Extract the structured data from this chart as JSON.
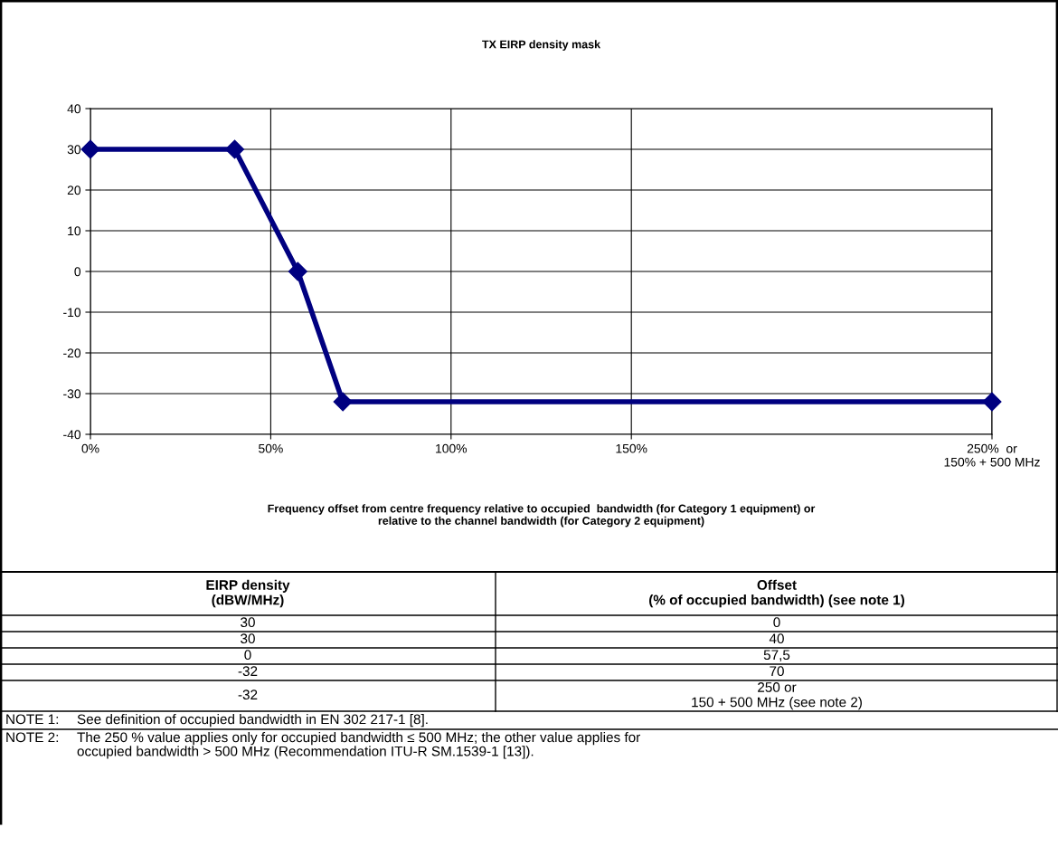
{
  "chart_data": {
    "type": "line",
    "title": "TX EIRP density mask",
    "xlabel": "Frequency offset from centre frequency relative to occupied  bandwidth (for Category 1 equipment) or\nrelative to the channel bandwidth (for Category 2 equipment)",
    "x": [
      0,
      40,
      57.5,
      70,
      250
    ],
    "series": [
      {
        "color": "#000080",
        "values": [
          30,
          30,
          0,
          -32,
          -32
        ]
      }
    ],
    "xlim": [
      0,
      250
    ],
    "xticks": [
      {
        "value": 0,
        "label": "0%"
      },
      {
        "value": 50,
        "label": "50%"
      },
      {
        "value": 100,
        "label": "100%"
      },
      {
        "value": 150,
        "label": "150%"
      },
      {
        "value": 250,
        "label": "250%  or\n150% + 500 MHz"
      }
    ],
    "ylim": [
      -40,
      40
    ],
    "yticks": [
      -40,
      -30,
      -20,
      -10,
      0,
      10,
      20,
      30,
      40
    ],
    "grid": true,
    "marker": "diamond",
    "line_style": "solid",
    "legend": false,
    "annotations": [
      "EIRP density\n(dBW/MHz)",
      "Offset\n(% of occupied bandwidth) (see note 1)",
      "30",
      "30",
      "0",
      "-32",
      "-32",
      "0",
      "40",
      "57,5",
      "70",
      "250 or\n150 + 500 MHz (see note 2)",
      "NOTE 1:\tSee definition of occupied bandwidth in EN 302 217-1 [8].",
      "NOTE 2:\tThe 250 % value applies only for occupied bandwidth ≤ 500 MHz; the other value applies for\noccupied bandwidth > 500 MHz (Recommendation ITU-R SM.1539-1 [13])."
    ]
  }
}
